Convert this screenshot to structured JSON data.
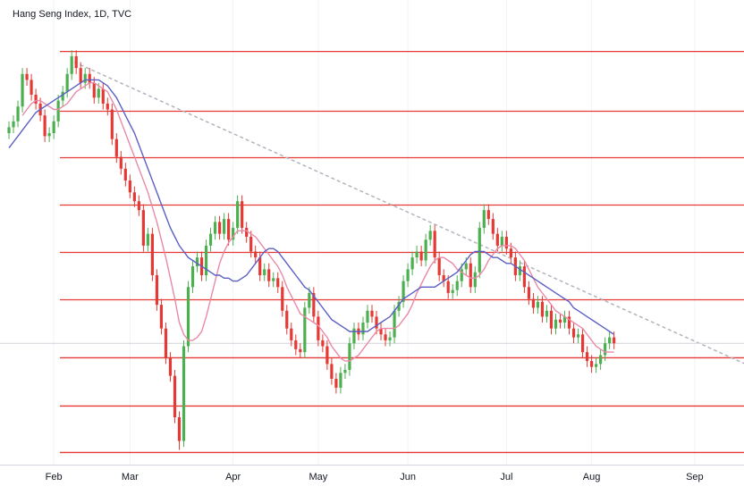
{
  "chart_data": {
    "type": "candlestick",
    "title": "Hang Seng Index, 1D, TVC",
    "xlim": [
      -2,
      164
    ],
    "ylim": [
      18000,
      25850
    ],
    "xticks": [
      {
        "value": 10,
        "label": "Feb"
      },
      {
        "value": 27,
        "label": "Mar"
      },
      {
        "value": 50,
        "label": "Apr"
      },
      {
        "value": 69,
        "label": "May"
      },
      {
        "value": 89,
        "label": "Jun"
      },
      {
        "value": 111,
        "label": "Jul"
      },
      {
        "value": 130,
        "label": "Aug"
      },
      {
        "value": 153,
        "label": "Sep"
      }
    ],
    "grid": true,
    "up_color": "#4caf50",
    "down_color": "#e53935",
    "open": [
      23600,
      23700,
      23800,
      24050,
      24600,
      24500,
      24250,
      24100,
      23900,
      23550,
      23600,
      23800,
      24150,
      24300,
      24600,
      24900,
      24700,
      24450,
      24600,
      24450,
      24200,
      24350,
      24100,
      24000,
      23500,
      23200,
      23000,
      22800,
      22600,
      22450,
      22300,
      21700,
      21900,
      21200,
      20700,
      20300,
      19800,
      19500,
      18800,
      18400,
      20000,
      21000,
      21350,
      21500,
      21200,
      21700,
      21900,
      22100,
      21900,
      22150,
      21800,
      22000,
      22450,
      22000,
      21850,
      21600,
      21500,
      21200,
      21300,
      21100,
      21150,
      21000,
      20600,
      20300,
      20100,
      19950,
      19900,
      20650,
      20900,
      20500,
      20100,
      20000,
      19700,
      19450,
      19300,
      19550,
      19600,
      20050,
      20300,
      20200,
      20400,
      20600,
      20500,
      20300,
      20200,
      20100,
      20150,
      20600,
      20750,
      21100,
      21300,
      21500,
      21600,
      21450,
      21800,
      21950,
      21500,
      21200,
      21100,
      20900,
      20950,
      21100,
      21300,
      21400,
      21000,
      21250,
      22000,
      22300,
      22150,
      21900,
      21700,
      21850,
      21650,
      21500,
      21200,
      21350,
      21000,
      20800,
      20650,
      20750,
      20500,
      20600,
      20300,
      20450,
      20400,
      20500,
      20300,
      20150,
      20200,
      19900,
      19750,
      19650,
      19700,
      19850,
      20050,
      20150
    ],
    "high": [
      23800,
      23900,
      24150,
      24700,
      24700,
      24600,
      24350,
      24200,
      24000,
      23700,
      23900,
      24250,
      24400,
      24700,
      25000,
      25000,
      24800,
      24700,
      24700,
      24550,
      24450,
      24450,
      24200,
      24100,
      23600,
      23300,
      23100,
      22900,
      22700,
      22550,
      22400,
      22000,
      22000,
      21300,
      20800,
      20400,
      19900,
      19600,
      18900,
      20100,
      21100,
      21450,
      21600,
      21600,
      21800,
      22000,
      22200,
      22200,
      22250,
      22250,
      22100,
      22550,
      22550,
      22100,
      21950,
      21700,
      21600,
      21400,
      21400,
      21250,
      21250,
      21100,
      20700,
      20400,
      20200,
      20050,
      20750,
      21000,
      21000,
      20600,
      20200,
      20100,
      19800,
      19550,
      19650,
      19700,
      20150,
      20400,
      20400,
      20500,
      20700,
      20700,
      20600,
      20400,
      20300,
      20250,
      20700,
      20850,
      21200,
      21400,
      21600,
      21700,
      21700,
      21900,
      22050,
      22050,
      21600,
      21300,
      21200,
      21050,
      21200,
      21400,
      21500,
      21500,
      21350,
      22100,
      22400,
      22400,
      22250,
      22000,
      21950,
      21950,
      21750,
      21600,
      21450,
      21450,
      21100,
      20900,
      20850,
      20850,
      20700,
      20700,
      20550,
      20550,
      20600,
      20600,
      20400,
      20300,
      20300,
      20000,
      19850,
      19800,
      19950,
      20150,
      20250,
      20250
    ],
    "low": [
      23500,
      23600,
      23700,
      23950,
      24400,
      24150,
      24000,
      23800,
      23450,
      23450,
      23500,
      23700,
      24050,
      24200,
      24500,
      24600,
      24350,
      24350,
      24350,
      24100,
      24100,
      24000,
      23900,
      23400,
      23100,
      22900,
      22700,
      22500,
      22350,
      22200,
      21600,
      21600,
      21100,
      20600,
      20200,
      19700,
      19400,
      18700,
      18250,
      18300,
      19900,
      20900,
      21250,
      21100,
      21100,
      21600,
      21800,
      21800,
      21800,
      21700,
      21700,
      21900,
      21900,
      21750,
      21500,
      21400,
      21100,
      21100,
      21000,
      21000,
      20900,
      20500,
      20200,
      20000,
      19850,
      19800,
      19800,
      20550,
      20400,
      20000,
      19900,
      19600,
      19350,
      19200,
      19200,
      19450,
      19500,
      19950,
      20100,
      20100,
      20300,
      20400,
      20200,
      20100,
      20000,
      20000,
      20050,
      20500,
      20650,
      21000,
      21200,
      21400,
      21350,
      21350,
      21700,
      21400,
      21100,
      21000,
      20800,
      20800,
      20850,
      21000,
      21200,
      20900,
      20900,
      21150,
      21900,
      22050,
      21800,
      21600,
      21600,
      21550,
      21400,
      21100,
      21100,
      20900,
      20700,
      20550,
      20550,
      20400,
      20400,
      20200,
      20200,
      20300,
      20300,
      20200,
      20050,
      20050,
      19800,
      19650,
      19550,
      19550,
      19600,
      19750,
      19950,
      19950
    ],
    "close": [
      23700,
      23800,
      24050,
      24600,
      24500,
      24250,
      24100,
      23900,
      23550,
      23600,
      23800,
      24150,
      24300,
      24600,
      24900,
      24700,
      24450,
      24600,
      24450,
      24200,
      24350,
      24100,
      24000,
      23500,
      23200,
      23000,
      22800,
      22600,
      22450,
      22300,
      21700,
      21900,
      21200,
      20700,
      20300,
      19800,
      19500,
      18800,
      18400,
      20000,
      21000,
      21350,
      21500,
      21200,
      21700,
      21900,
      22100,
      21900,
      22150,
      21800,
      22000,
      22450,
      22000,
      21850,
      21600,
      21500,
      21200,
      21300,
      21100,
      21150,
      21000,
      20600,
      20300,
      20100,
      19950,
      19900,
      20650,
      20900,
      20500,
      20100,
      20000,
      19700,
      19450,
      19300,
      19550,
      19600,
      20050,
      20300,
      20200,
      20400,
      20600,
      20500,
      20300,
      20200,
      20100,
      20150,
      20600,
      20750,
      21100,
      21300,
      21500,
      21600,
      21450,
      21800,
      21950,
      21500,
      21200,
      21100,
      20900,
      20950,
      21100,
      21300,
      21400,
      21000,
      21250,
      22000,
      22300,
      22150,
      21900,
      21700,
      21850,
      21650,
      21500,
      21200,
      21350,
      21000,
      20800,
      20650,
      20750,
      20500,
      20600,
      20300,
      20450,
      20400,
      20500,
      20300,
      20150,
      20200,
      19900,
      19750,
      19650,
      19700,
      19850,
      20050,
      20150,
      20050
    ],
    "lines": [
      {
        "color": "#e88aa8",
        "values": [
          null,
          null,
          null,
          23900,
          24000,
          24100,
          24150,
          24150,
          24100,
          24050,
          24000,
          24000,
          24050,
          24100,
          24200,
          24300,
          24350,
          24400,
          24450,
          24450,
          24400,
          24350,
          24300,
          24150,
          24000,
          23800,
          23600,
          23400,
          23200,
          23000,
          22800,
          22600,
          22350,
          22100,
          21800,
          21500,
          21150,
          20800,
          20400,
          20200,
          20100,
          20100,
          20150,
          20250,
          20500,
          20800,
          21100,
          21400,
          21600,
          21750,
          21850,
          21950,
          21950,
          21950,
          21900,
          21850,
          21750,
          21650,
          21550,
          21450,
          21350,
          21200,
          21000,
          20850,
          20700,
          20550,
          20500,
          20450,
          20400,
          20350,
          20250,
          20150,
          20000,
          19900,
          19800,
          19750,
          19750,
          19800,
          19850,
          19950,
          20050,
          20150,
          20250,
          20300,
          20300,
          20300,
          20300,
          20350,
          20450,
          20550,
          20700,
          20900,
          21050,
          21200,
          21350,
          21450,
          21500,
          21500,
          21450,
          21400,
          21300,
          21250,
          21200,
          21150,
          21150,
          21200,
          21300,
          21450,
          21550,
          21650,
          21700,
          21700,
          21700,
          21650,
          21550,
          21450,
          21300,
          21150,
          21000,
          20900,
          20800,
          20700,
          20600,
          20550,
          20500,
          20450,
          20400,
          20350,
          20300,
          20200,
          20100,
          20000,
          19950,
          19900,
          19900,
          19900
        ]
      },
      {
        "color": "#5c5fc4",
        "values": [
          23350,
          23450,
          23550,
          23650,
          23750,
          23850,
          23950,
          24000,
          24050,
          24100,
          24150,
          24200,
          24250,
          24300,
          24350,
          24400,
          24450,
          24500,
          24500,
          24500,
          24500,
          24450,
          24400,
          24300,
          24200,
          24050,
          23900,
          23750,
          23600,
          23400,
          23200,
          23000,
          22800,
          22600,
          22400,
          22200,
          22000,
          21850,
          21700,
          21600,
          21500,
          21450,
          21400,
          21350,
          21300,
          21250,
          21200,
          21200,
          21150,
          21150,
          21100,
          21100,
          21150,
          21200,
          21300,
          21400,
          21500,
          21600,
          21650,
          21650,
          21600,
          21500,
          21400,
          21300,
          21200,
          21100,
          21000,
          20950,
          20850,
          20750,
          20650,
          20550,
          20450,
          20400,
          20350,
          20300,
          20250,
          20250,
          20250,
          20250,
          20250,
          20300,
          20350,
          20400,
          20450,
          20500,
          20600,
          20700,
          20800,
          20850,
          20900,
          20950,
          21000,
          21000,
          21000,
          21000,
          21050,
          21100,
          21150,
          21200,
          21250,
          21350,
          21450,
          21550,
          21600,
          21600,
          21600,
          21550,
          21500,
          21500,
          21450,
          21400,
          21400,
          21350,
          21300,
          21250,
          21200,
          21150,
          21100,
          21050,
          21000,
          20950,
          20900,
          20850,
          20800,
          20750,
          20650,
          20600,
          20550,
          20500,
          20450,
          20400,
          20350,
          20300,
          20250,
          20200
        ]
      }
    ],
    "levels": {
      "color": "#e53935",
      "values": [
        24980,
        23970,
        23185,
        22385,
        21585,
        20785,
        19805,
        18990,
        18205
      ]
    },
    "trendline": {
      "color": "#b2b5be",
      "x": [
        14.6,
        164
      ],
      "y": [
        24800,
        19710
      ]
    }
  }
}
